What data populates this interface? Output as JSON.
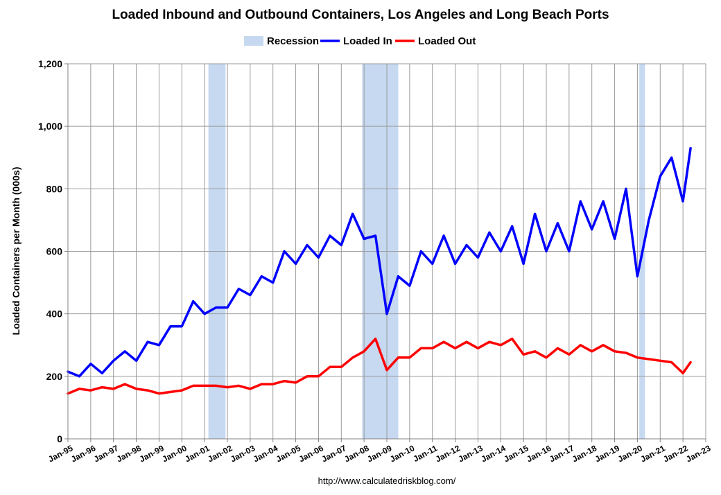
{
  "chart_data": {
    "type": "line",
    "title": "Loaded Inbound and Outbound Containers, Los Angeles and Long Beach Ports",
    "ylabel": "Loaded Containers per Month (000s)",
    "xlabel": "",
    "source": "http://www.calculatedriskblog.com/",
    "ylim": [
      0,
      1200
    ],
    "yticks": [
      0,
      200,
      400,
      600,
      800,
      1000,
      1200
    ],
    "ytick_labels": [
      "0",
      "200",
      "400",
      "600",
      "800",
      "1,000",
      "1,200"
    ],
    "xticks": [
      "Jan-95",
      "Jan-96",
      "Jan-97",
      "Jan-98",
      "Jan-99",
      "Jan-00",
      "Jan-01",
      "Jan-02",
      "Jan-03",
      "Jan-04",
      "Jan-05",
      "Jan-06",
      "Jan-07",
      "Jan-08",
      "Jan-09",
      "Jan-10",
      "Jan-11",
      "Jan-12",
      "Jan-13",
      "Jan-14",
      "Jan-15",
      "Jan-16",
      "Jan-17",
      "Jan-18",
      "Jan-19",
      "Jan-20",
      "Jan-21",
      "Jan-22",
      "Jan-23"
    ],
    "grid": true,
    "legend_position": "top-center",
    "legend": [
      {
        "name": "Recession",
        "color": "#c6d9f1",
        "kind": "box"
      },
      {
        "name": "Loaded In",
        "color": "#0000ff",
        "kind": "line"
      },
      {
        "name": "Loaded Out",
        "color": "#ff0000",
        "kind": "line"
      }
    ],
    "recessions": [
      {
        "start": "2001-03",
        "end": "2001-11"
      },
      {
        "start": "2007-12",
        "end": "2009-06"
      },
      {
        "start": "2020-02",
        "end": "2020-04"
      }
    ],
    "series": [
      {
        "name": "Loaded In",
        "color": "#0000ff",
        "x": [
          "1995-01",
          "1995-07",
          "1996-01",
          "1996-07",
          "1997-01",
          "1997-07",
          "1998-01",
          "1998-07",
          "1999-01",
          "1999-07",
          "2000-01",
          "2000-07",
          "2001-01",
          "2001-07",
          "2002-01",
          "2002-07",
          "2003-01",
          "2003-07",
          "2004-01",
          "2004-07",
          "2005-01",
          "2005-07",
          "2006-01",
          "2006-07",
          "2007-01",
          "2007-07",
          "2008-01",
          "2008-07",
          "2009-01",
          "2009-07",
          "2010-01",
          "2010-07",
          "2011-01",
          "2011-07",
          "2012-01",
          "2012-07",
          "2013-01",
          "2013-07",
          "2014-01",
          "2014-07",
          "2015-01",
          "2015-07",
          "2016-01",
          "2016-07",
          "2017-01",
          "2017-07",
          "2018-01",
          "2018-07",
          "2019-01",
          "2019-07",
          "2020-01",
          "2020-07",
          "2021-01",
          "2021-07",
          "2022-01",
          "2022-05"
        ],
        "values": [
          215,
          200,
          240,
          210,
          250,
          280,
          250,
          310,
          300,
          360,
          360,
          440,
          400,
          420,
          420,
          480,
          460,
          520,
          500,
          600,
          560,
          620,
          580,
          650,
          620,
          720,
          640,
          650,
          400,
          520,
          490,
          600,
          560,
          650,
          560,
          620,
          580,
          660,
          600,
          680,
          560,
          720,
          600,
          690,
          600,
          760,
          670,
          760,
          640,
          800,
          520,
          700,
          840,
          900,
          760,
          930
        ]
      },
      {
        "name": "Loaded Out",
        "color": "#ff0000",
        "x": [
          "1995-01",
          "1995-07",
          "1996-01",
          "1996-07",
          "1997-01",
          "1997-07",
          "1998-01",
          "1998-07",
          "1999-01",
          "1999-07",
          "2000-01",
          "2000-07",
          "2001-01",
          "2001-07",
          "2002-01",
          "2002-07",
          "2003-01",
          "2003-07",
          "2004-01",
          "2004-07",
          "2005-01",
          "2005-07",
          "2006-01",
          "2006-07",
          "2007-01",
          "2007-07",
          "2008-01",
          "2008-07",
          "2009-01",
          "2009-07",
          "2010-01",
          "2010-07",
          "2011-01",
          "2011-07",
          "2012-01",
          "2012-07",
          "2013-01",
          "2013-07",
          "2014-01",
          "2014-07",
          "2015-01",
          "2015-07",
          "2016-01",
          "2016-07",
          "2017-01",
          "2017-07",
          "2018-01",
          "2018-07",
          "2019-01",
          "2019-07",
          "2020-01",
          "2020-07",
          "2021-01",
          "2021-07",
          "2022-01",
          "2022-05"
        ],
        "values": [
          145,
          160,
          155,
          165,
          160,
          175,
          160,
          155,
          145,
          150,
          155,
          170,
          170,
          170,
          165,
          170,
          160,
          175,
          175,
          185,
          180,
          200,
          200,
          230,
          230,
          260,
          280,
          320,
          220,
          260,
          260,
          290,
          290,
          310,
          290,
          310,
          290,
          310,
          300,
          320,
          270,
          280,
          260,
          290,
          270,
          300,
          280,
          300,
          280,
          275,
          260,
          255,
          250,
          245,
          210,
          245
        ]
      }
    ]
  }
}
